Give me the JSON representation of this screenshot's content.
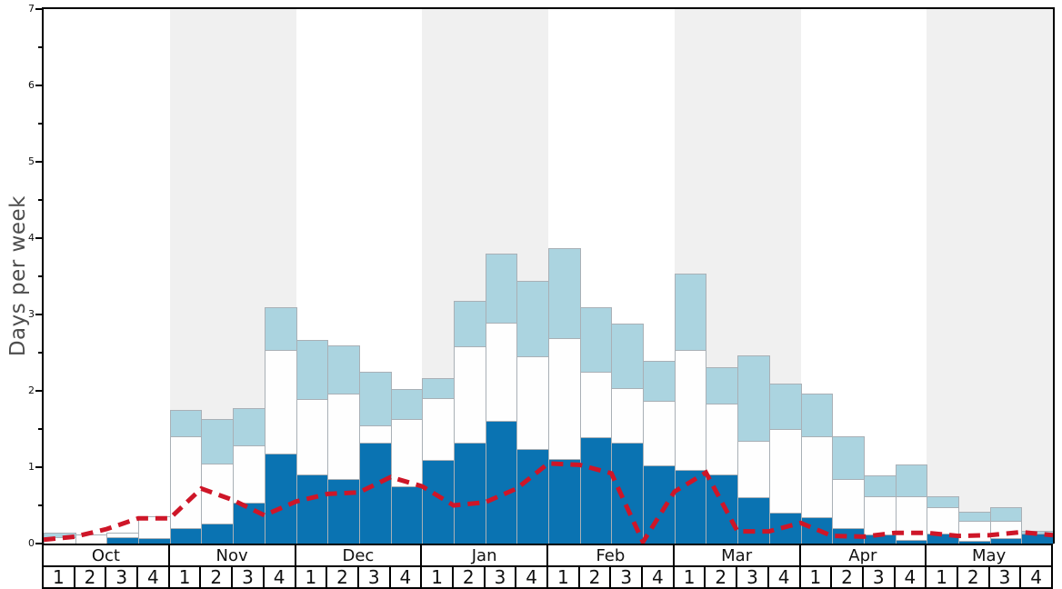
{
  "chart_data": {
    "type": "bar",
    "stacked": true,
    "title": "",
    "ylabel": "Days per week",
    "ylim": [
      0,
      7
    ],
    "ytick_labels": [
      "0",
      "1",
      "2",
      "3",
      "4",
      "5",
      "6",
      "7"
    ],
    "minor_tick_step": 0.5,
    "grid": false,
    "legend": "none",
    "months": [
      "Oct",
      "Nov",
      "Dec",
      "Jan",
      "Feb",
      "Mar",
      "Apr",
      "May"
    ],
    "week_labels": [
      "1",
      "2",
      "3",
      "4"
    ],
    "shaded_month_indices": [
      1,
      3,
      5,
      7
    ],
    "series": [
      {
        "name": "dark-blue-segment",
        "color": "#0a73b2",
        "values": [
          0.0,
          0.0,
          0.08,
          0.07,
          0.2,
          0.26,
          0.54,
          1.18,
          0.9,
          0.84,
          1.32,
          0.75,
          1.1,
          1.32,
          1.61,
          1.24,
          1.11,
          1.39,
          1.32,
          1.02,
          0.97,
          0.9,
          0.61,
          0.41,
          0.34,
          0.2,
          0.12,
          0.05,
          0.13,
          0.03,
          0.07,
          0.13
        ]
      },
      {
        "name": "white-segment",
        "color": "#fefefe",
        "values": [
          0.08,
          0.12,
          0.06,
          0.29,
          1.21,
          0.79,
          0.74,
          1.35,
          0.99,
          1.12,
          0.23,
          0.88,
          0.81,
          1.26,
          1.28,
          1.21,
          1.58,
          0.86,
          0.71,
          0.85,
          1.56,
          0.93,
          0.73,
          1.09,
          1.06,
          0.64,
          0.5,
          0.57,
          0.35,
          0.27,
          0.23,
          0.0
        ]
      },
      {
        "name": "light-blue-segment",
        "color": "#abd4e0",
        "values": [
          0.06,
          0.0,
          0.0,
          0.0,
          0.34,
          0.58,
          0.49,
          0.56,
          0.78,
          0.63,
          0.7,
          0.39,
          0.26,
          0.6,
          0.91,
          0.99,
          1.18,
          0.84,
          0.85,
          0.52,
          1.0,
          0.48,
          1.12,
          0.6,
          0.57,
          0.57,
          0.27,
          0.41,
          0.14,
          0.12,
          0.18,
          0.04
        ]
      }
    ],
    "line_series": {
      "name": "red-dashed-line",
      "color": "#ce1628",
      "style": "dashed",
      "x_unit": "week-boundary-index-0-to-32",
      "values": [
        0.05,
        0.09,
        0.19,
        0.33,
        0.33,
        0.72,
        0.57,
        0.37,
        0.55,
        0.65,
        0.67,
        0.87,
        0.75,
        0.5,
        0.54,
        0.72,
        1.05,
        1.03,
        0.92,
        0.02,
        0.68,
        0.93,
        0.16,
        0.16,
        0.27,
        0.1,
        0.09,
        0.14,
        0.14,
        0.1,
        0.11,
        0.15,
        0.11
      ]
    },
    "colors": {
      "plot_background": "#ffffff",
      "shaded_band": "#f0f0f0",
      "bar_border": "#a9b0b6",
      "frame": "#000000",
      "ylabel_text": "#4d4d4d",
      "tick_text": "#111111"
    }
  }
}
